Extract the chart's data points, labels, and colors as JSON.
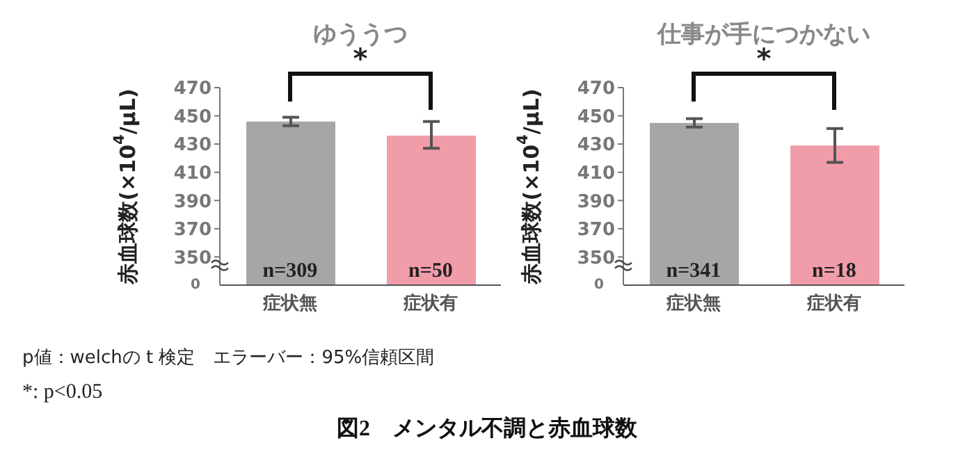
{
  "chart_data": [
    {
      "type": "bar",
      "title": "ゆううつ",
      "ylabel": "赤血球数(×10$^{4}$/μL)",
      "categories": [
        "症状無",
        "症状有"
      ],
      "values": [
        446,
        436
      ],
      "colors": [
        "#a6a6a6",
        "#f19ca9"
      ],
      "errors": [
        [
          443,
          449
        ],
        [
          427,
          446
        ]
      ],
      "ylim": [
        330,
        470
      ],
      "yticks": [
        350,
        370,
        390,
        410,
        430,
        450,
        470
      ],
      "annotations": [
        "*",
        "0",
        "n=309",
        "n=50",
        "p値：welchの t 検定　エラーバー：95%信頼区間",
        "*: p<0.05",
        "図2　メンタル不調と赤血球数"
      ]
    },
    {
      "type": "bar",
      "title": "仕事が手につかない",
      "ylabel": "赤血球数(×10$^{4}$/μL)",
      "categories": [
        "症状無",
        "症状有"
      ],
      "values": [
        445,
        429
      ],
      "colors": [
        "#a6a6a6",
        "#f19ca9"
      ],
      "errors": [
        [
          442,
          448
        ],
        [
          417,
          441
        ]
      ],
      "ylim": [
        330,
        470
      ],
      "yticks": [
        350,
        370,
        390,
        410,
        430,
        450,
        470
      ],
      "annotations": [
        "*",
        "0",
        "n=341",
        "n=18"
      ]
    }
  ]
}
